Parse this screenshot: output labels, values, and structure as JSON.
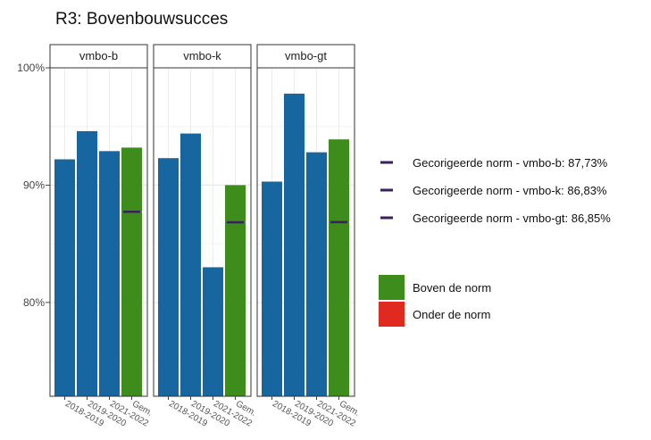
{
  "chart_data": {
    "type": "bar",
    "title": "R3: Bovenbouwsucces",
    "xlabel": "",
    "ylabel": "",
    "ylim": [
      72,
      100
    ],
    "yticks": [
      80,
      90,
      100
    ],
    "ytick_labels": [
      "80%",
      "90%",
      "100%"
    ],
    "grid": true,
    "legend_position": "right",
    "categories": [
      "2018-2019",
      "2019-2020",
      "2021-2022",
      "Gem."
    ],
    "panels": [
      {
        "name": "vmbo-b",
        "values": [
          92.2,
          94.6,
          92.9,
          93.2
        ],
        "norm": 87.73,
        "bar_colors": [
          "#1866a0",
          "#1866a0",
          "#1866a0",
          "#3e8d1c"
        ]
      },
      {
        "name": "vmbo-k",
        "values": [
          92.3,
          94.4,
          83.0,
          90.0
        ],
        "norm": 86.83,
        "bar_colors": [
          "#1866a0",
          "#1866a0",
          "#1866a0",
          "#3e8d1c"
        ]
      },
      {
        "name": "vmbo-gt",
        "values": [
          90.3,
          97.8,
          92.8,
          93.9
        ],
        "norm": 86.85,
        "bar_colors": [
          "#1866a0",
          "#1866a0",
          "#1866a0",
          "#3e8d1c"
        ]
      }
    ],
    "legend_norm": [
      "Gecorigeerde norm - vmbo-b: 87,73%",
      "Gecorigeerde norm - vmbo-k: 86,83%",
      "Gecorigeerde norm - vmbo-gt: 86,85%"
    ],
    "legend_fill": [
      {
        "label": "Boven de norm",
        "color": "#3e8d1c"
      },
      {
        "label": "Onder de norm",
        "color": "#e02a1f"
      }
    ],
    "norm_color": "#3b1f5e"
  }
}
